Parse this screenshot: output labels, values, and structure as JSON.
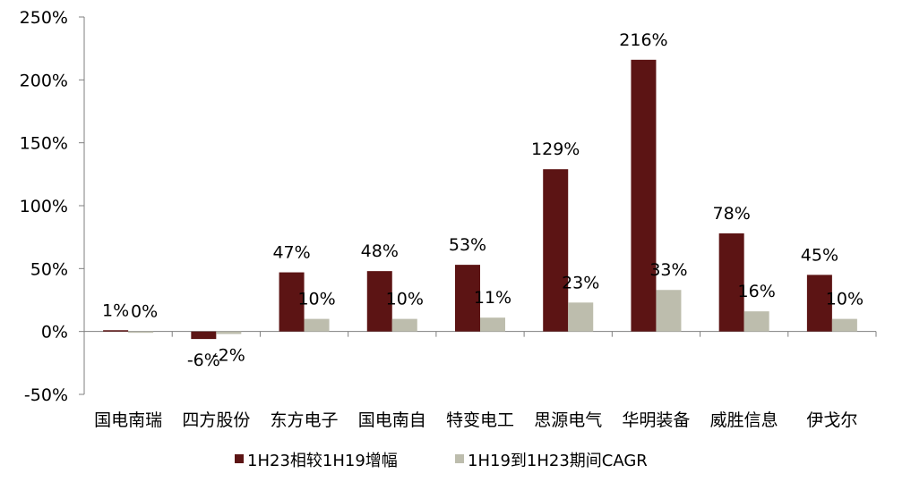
{
  "chart_data": {
    "type": "bar",
    "title": "",
    "xlabel": "",
    "ylabel": "",
    "ylim": [
      -50,
      250
    ],
    "yticks": [
      -50,
      0,
      50,
      100,
      150,
      200,
      250
    ],
    "ytick_labels": [
      "-50%",
      "0%",
      "50%",
      "100%",
      "150%",
      "200%",
      "250%"
    ],
    "grid": false,
    "legend_position": "bottom",
    "categories": [
      "国电南瑞",
      "四方股份",
      "东方电子",
      "国电南自",
      "特变电工",
      "思源电气",
      "华明装备",
      "威胜信息",
      "伊戈尔"
    ],
    "series": [
      {
        "name": "1H23相较1H19增幅",
        "color": "#5c1414",
        "values": [
          1,
          -6,
          47,
          48,
          53,
          129,
          216,
          78,
          45
        ],
        "labels": [
          "1%",
          "-6%",
          "47%",
          "48%",
          "53%",
          "129%",
          "216%",
          "78%",
          "45%"
        ]
      },
      {
        "name": "1H19到1H23期间CAGR",
        "color": "#bdbdad",
        "values": [
          0,
          -2,
          10,
          10,
          11,
          23,
          33,
          16,
          10
        ],
        "labels": [
          "0%",
          "-2%",
          "10%",
          "10%",
          "11%",
          "23%",
          "33%",
          "16%",
          "10%"
        ]
      }
    ]
  }
}
